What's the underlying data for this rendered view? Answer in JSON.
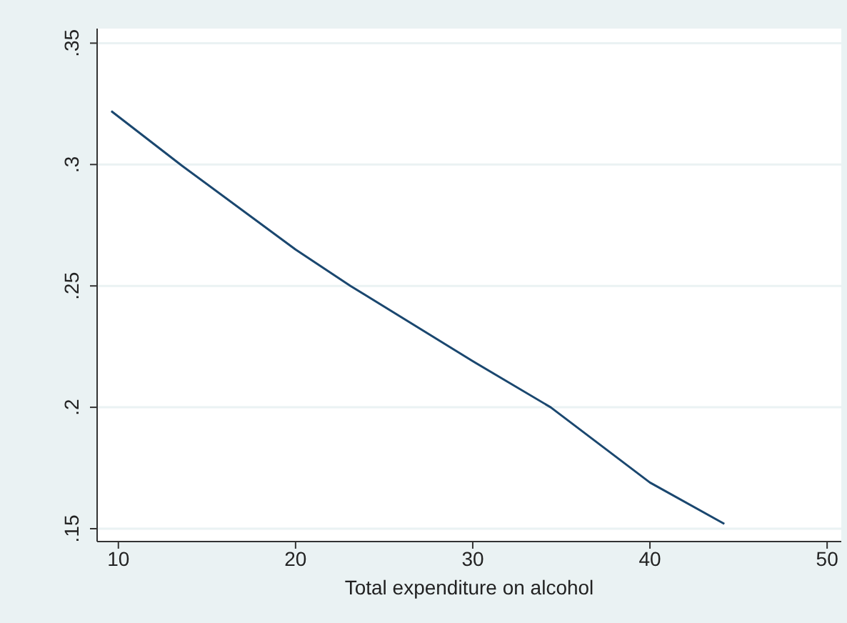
{
  "chart_data": {
    "type": "line",
    "xlabel": "Total expenditure on alcohol",
    "x": [
      9.6,
      13.5,
      20,
      23.1,
      30,
      34.4,
      40,
      44.2
    ],
    "series": [
      {
        "color": "#1a476f",
        "values": [
          0.322,
          0.3,
          0.265,
          0.25,
          0.219,
          0.2,
          0.169,
          0.152
        ]
      }
    ],
    "xlim": [
      8.8,
      50.8
    ],
    "xticks": [
      10,
      20,
      30,
      40,
      50
    ],
    "ylim": [
      0.1447,
      0.356
    ],
    "yticks": [
      {
        "value": 0.15,
        "label": ".15"
      },
      {
        "value": 0.2,
        "label": ".2"
      },
      {
        "value": 0.25,
        "label": ".25"
      },
      {
        "value": 0.3,
        "label": ".3"
      },
      {
        "value": 0.35,
        "label": ".35"
      }
    ],
    "grid": "y",
    "legend": false,
    "marker": "none",
    "line_style": "solid"
  }
}
